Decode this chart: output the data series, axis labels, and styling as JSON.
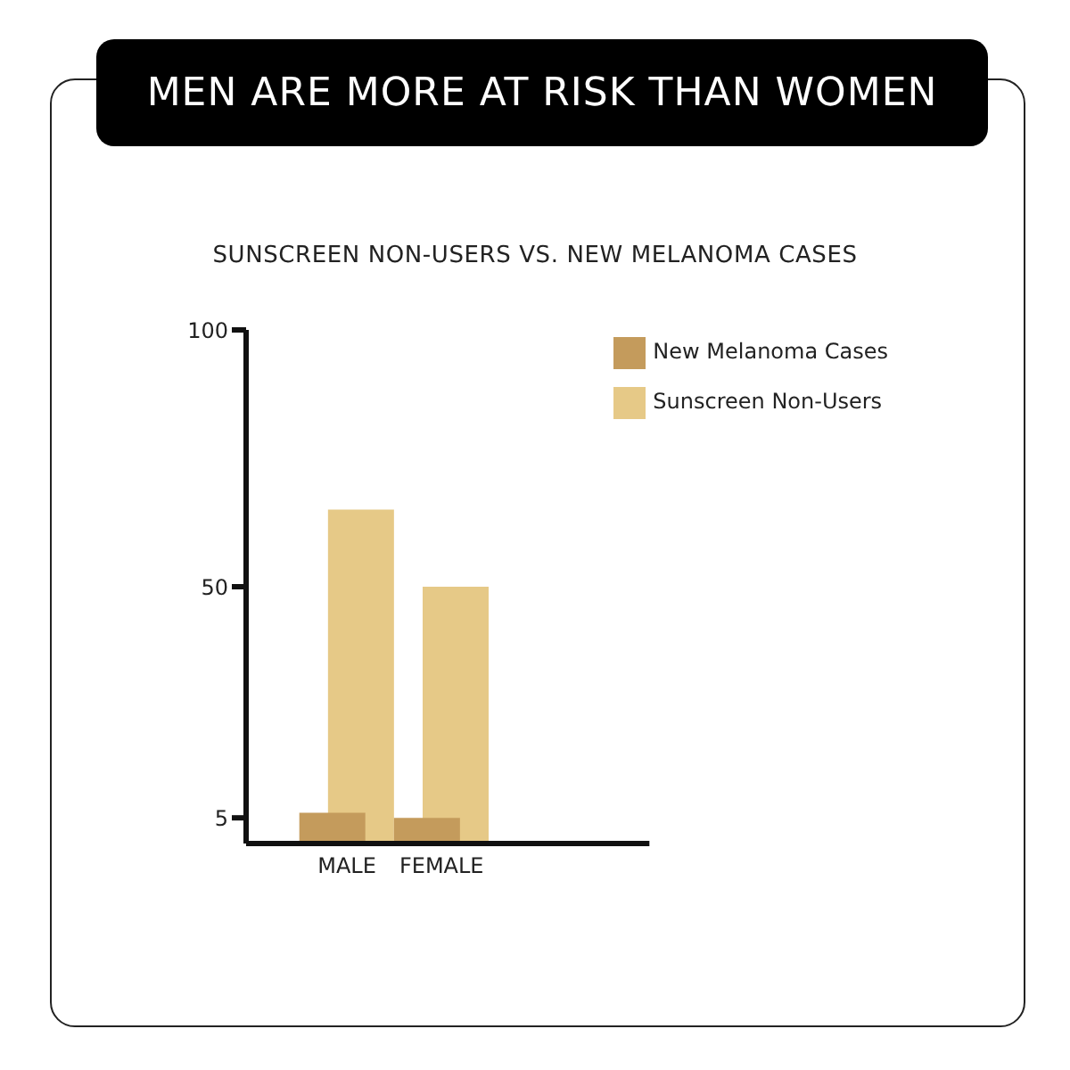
{
  "chart_data": {
    "type": "bar",
    "title": "MEN ARE MORE AT RISK THAN WOMEN",
    "subtitle": "SUNSCREEN NON-USERS VS. NEW MELANOMA CASES",
    "categories": [
      "MALE",
      "FEMALE"
    ],
    "series": [
      {
        "name": "Sunscreen Non-Users",
        "color": "#e6c987",
        "values": [
          65,
          50
        ]
      },
      {
        "name": "New Melanoma Cases",
        "color": "#c49b5c",
        "values": [
          6,
          5
        ]
      }
    ],
    "ylim": [
      0,
      100
    ],
    "yticks": [
      5,
      50,
      100
    ],
    "grid": false,
    "legend": "top right"
  }
}
